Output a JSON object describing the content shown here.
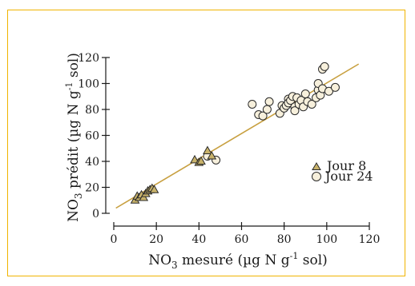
{
  "colors": {
    "frame": "#f0b400",
    "fit_line": "#c8a040",
    "triangle_fill": "#c8b26a",
    "circle_fill": "#f7f0dc",
    "marker_stroke": "#2a2a2a"
  },
  "chart_data": {
    "type": "scatter",
    "xlabel": {
      "main": "NO",
      "sub": "3",
      "rest": " mesuré (µg N g",
      "sup": "-1",
      "end": " sol)"
    },
    "ylabel": {
      "main": "NO",
      "sub": "3",
      "rest": " prédit (µg N g",
      "sup": "-1",
      "end": " sol)"
    },
    "xlim": [
      0,
      120
    ],
    "ylim": [
      0,
      120
    ],
    "xticks": [
      "0",
      "20",
      "40",
      "60",
      "80",
      "100",
      "120"
    ],
    "yticks": [
      "0",
      "20",
      "40",
      "60",
      "80",
      "100",
      "120"
    ],
    "legend_position": "right-center",
    "fit_line": {
      "x": [
        1,
        115
      ],
      "y": [
        4,
        115
      ]
    },
    "series": [
      {
        "name": "Jour 8",
        "marker": "triangle",
        "points": [
          [
            10,
            10
          ],
          [
            11,
            13
          ],
          [
            12,
            12
          ],
          [
            13,
            14
          ],
          [
            14,
            12
          ],
          [
            15,
            15
          ],
          [
            16,
            17
          ],
          [
            17,
            18
          ],
          [
            18,
            19
          ],
          [
            19,
            18
          ],
          [
            38,
            41
          ],
          [
            40,
            39
          ],
          [
            41,
            40
          ],
          [
            44,
            48
          ],
          [
            46,
            44
          ]
        ]
      },
      {
        "name": "Jour 24",
        "marker": "circle",
        "points": [
          [
            44,
            44
          ],
          [
            48,
            41
          ],
          [
            65,
            84
          ],
          [
            68,
            76
          ],
          [
            70,
            75
          ],
          [
            72,
            80
          ],
          [
            73,
            86
          ],
          [
            78,
            77
          ],
          [
            79,
            83
          ],
          [
            80,
            81
          ],
          [
            81,
            83
          ],
          [
            82,
            88
          ],
          [
            82,
            85
          ],
          [
            83,
            87
          ],
          [
            84,
            90
          ],
          [
            85,
            82
          ],
          [
            85,
            79
          ],
          [
            86,
            89
          ],
          [
            87,
            84
          ],
          [
            88,
            87
          ],
          [
            89,
            82
          ],
          [
            90,
            92
          ],
          [
            91,
            86
          ],
          [
            93,
            84
          ],
          [
            95,
            89
          ],
          [
            96,
            95
          ],
          [
            96,
            100
          ],
          [
            97,
            91
          ],
          [
            98,
            96
          ],
          [
            98,
            111
          ],
          [
            99,
            113
          ],
          [
            101,
            94
          ],
          [
            104,
            97
          ]
        ]
      }
    ]
  }
}
